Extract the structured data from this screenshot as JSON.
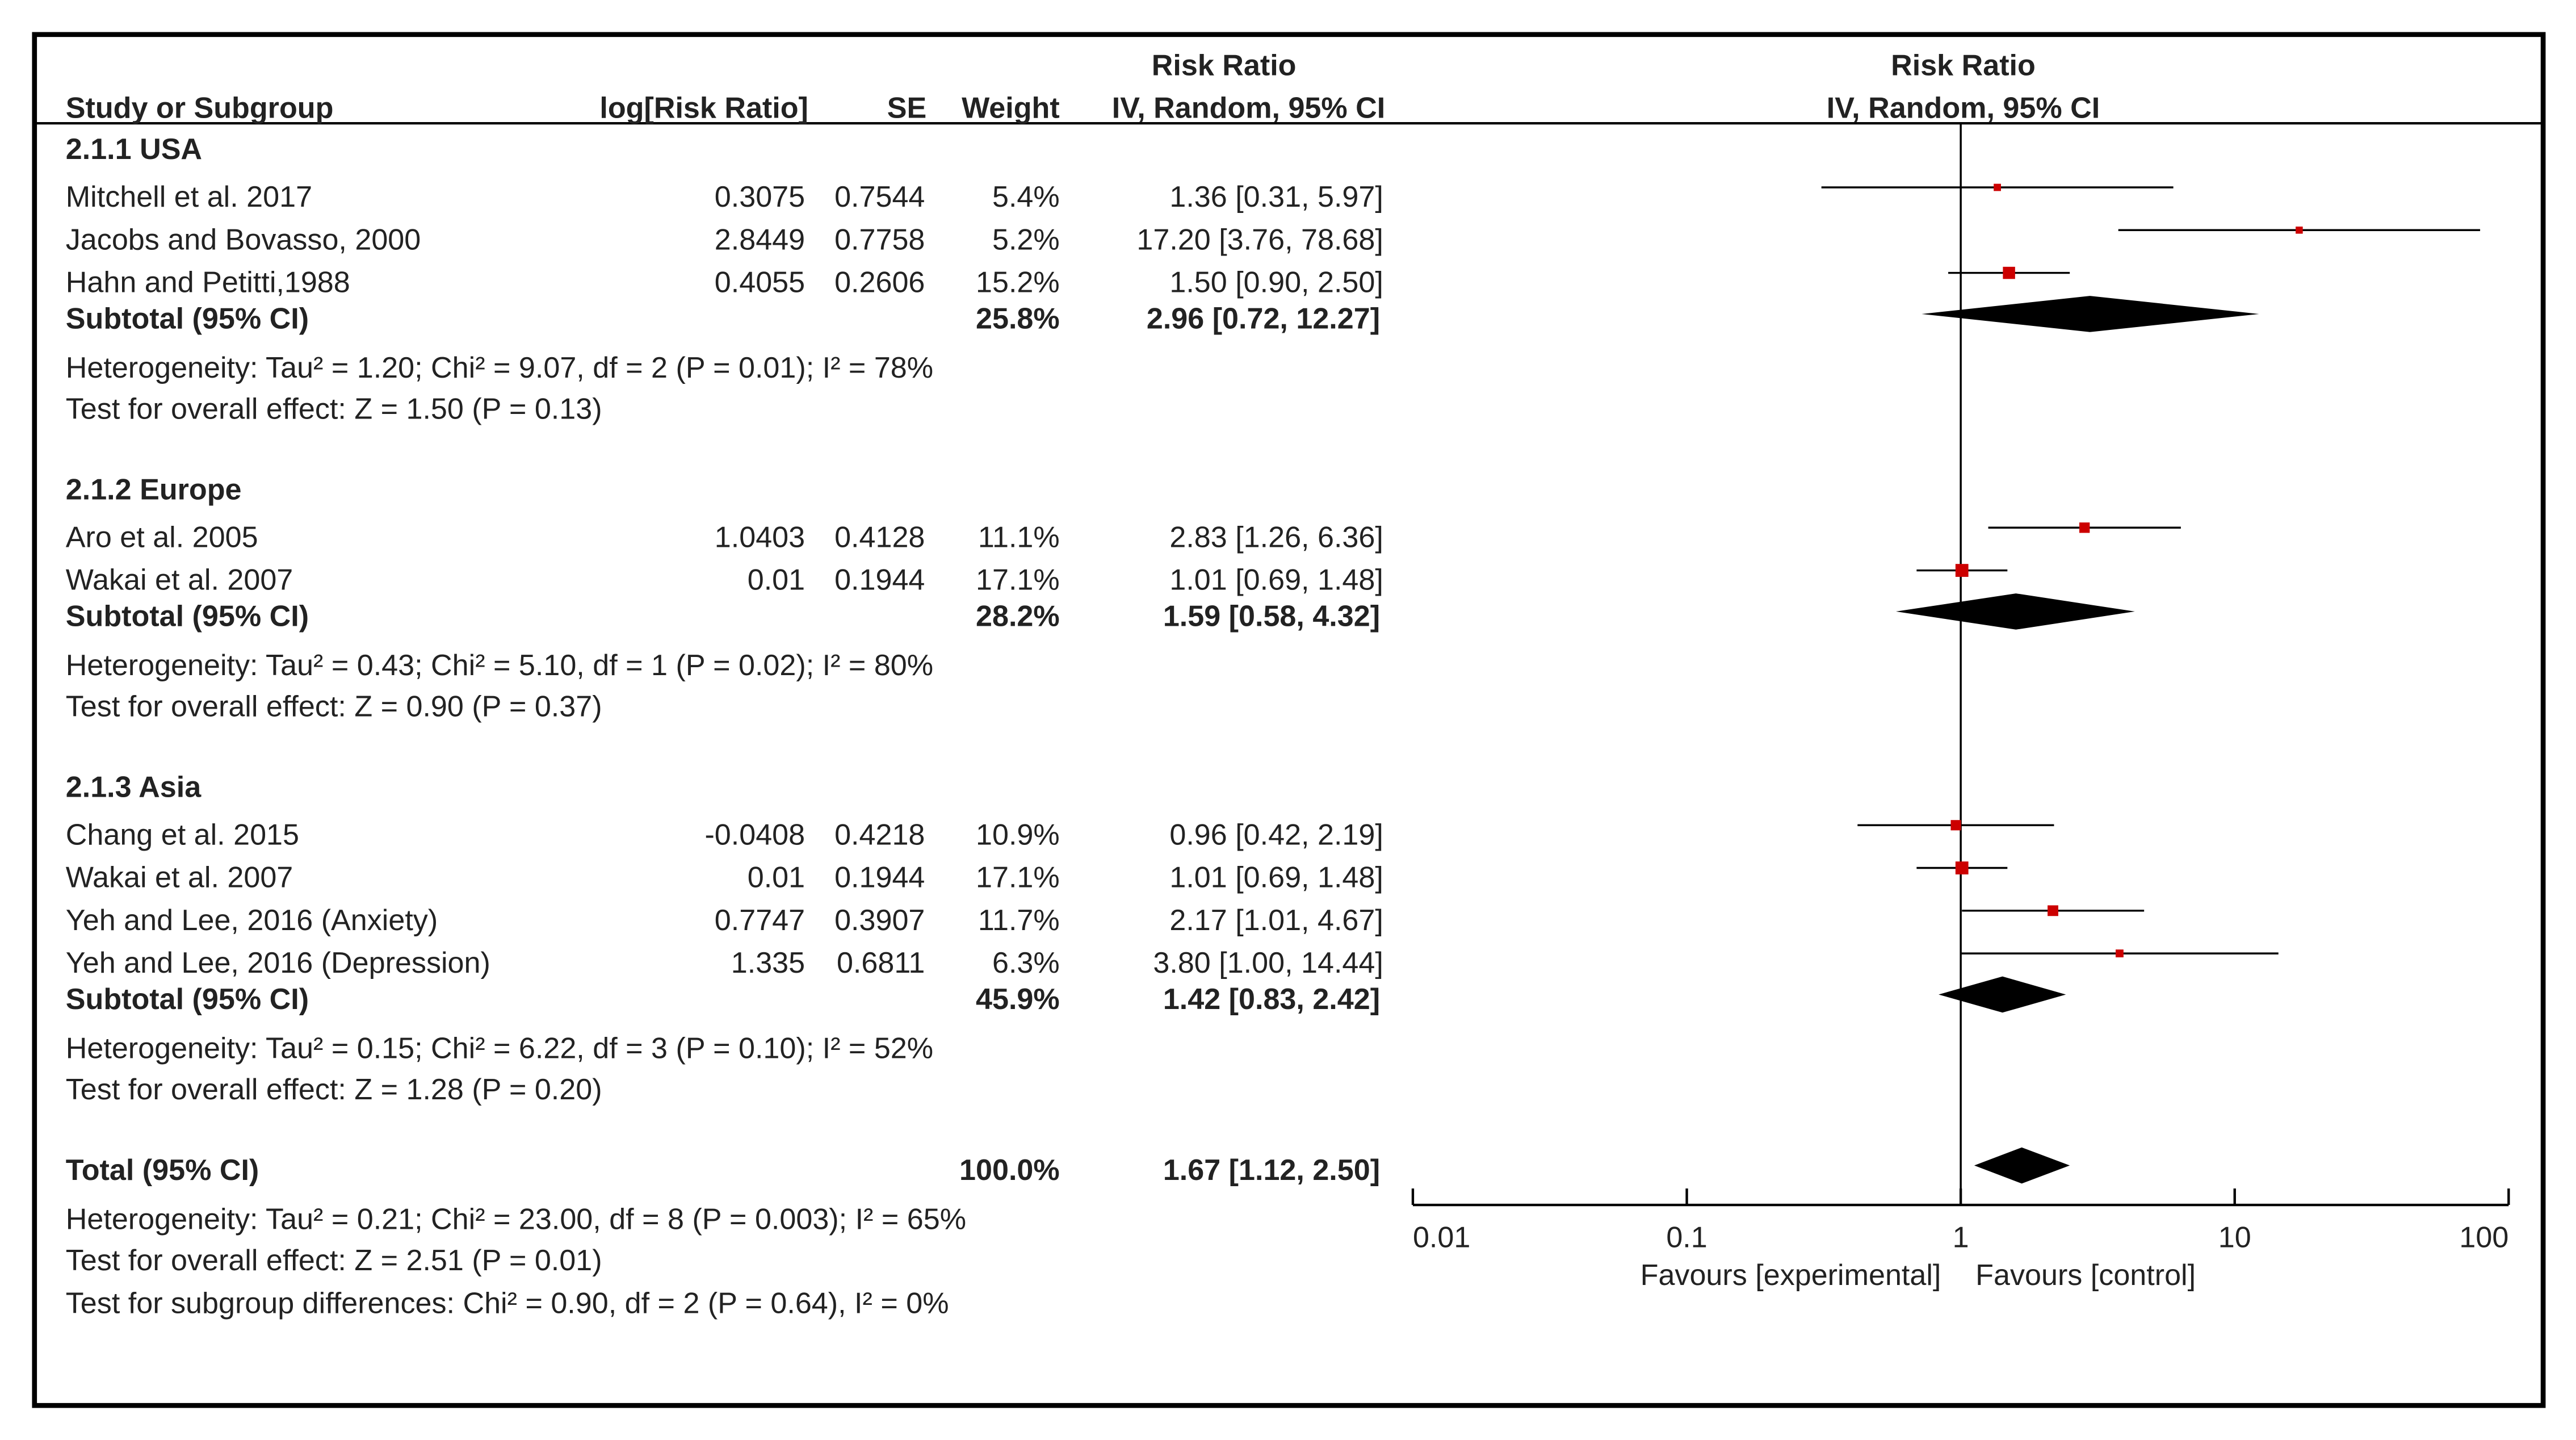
{
  "chart_data": {
    "type": "forest",
    "columns": [
      "Study or Subgroup",
      "log[Risk Ratio]",
      "SE",
      "Weight",
      "IV, Random, 95% CI"
    ],
    "column_group": "Risk Ratio",
    "plot_header": [
      "Risk Ratio",
      "IV, Random, 95% CI"
    ],
    "groups": [
      {
        "name": "2.1.1 USA",
        "studies": [
          {
            "name": "Mitchell et al. 2017",
            "log_rr": 0.3075,
            "se": 0.7544,
            "weight": 5.4,
            "weight_label": "5.4%",
            "rr": 1.36,
            "ci_low": 0.31,
            "ci_high": 5.97,
            "ci_label": "1.36 [0.31, 5.97]"
          },
          {
            "name": "Jacobs and Bovasso, 2000",
            "log_rr": 2.8449,
            "se": 0.7758,
            "weight": 5.2,
            "weight_label": "5.2%",
            "rr": 17.2,
            "ci_low": 3.76,
            "ci_high": 78.68,
            "ci_label": "17.20 [3.76, 78.68]"
          },
          {
            "name": "Hahn and Petitti,1988",
            "log_rr": 0.4055,
            "se": 0.2606,
            "weight": 15.2,
            "weight_label": "15.2%",
            "rr": 1.5,
            "ci_low": 0.9,
            "ci_high": 2.5,
            "ci_label": "1.50 [0.90, 2.50]"
          }
        ],
        "subtotal": {
          "name": "Subtotal (95% CI)",
          "weight": 25.8,
          "weight_label": "25.8%",
          "rr": 2.96,
          "ci_low": 0.72,
          "ci_high": 12.27,
          "ci_label": "2.96 [0.72, 12.27]"
        },
        "heterogeneity": "Heterogeneity: Tau² = 1.20; Chi² = 9.07, df = 2 (P = 0.01); I² = 78%",
        "overall": "Test for overall effect: Z = 1.50 (P = 0.13)"
      },
      {
        "name": "2.1.2 Europe",
        "studies": [
          {
            "name": "Aro et al. 2005",
            "log_rr": 1.0403,
            "se": 0.4128,
            "weight": 11.1,
            "weight_label": "11.1%",
            "rr": 2.83,
            "ci_low": 1.26,
            "ci_high": 6.36,
            "ci_label": "2.83 [1.26, 6.36]"
          },
          {
            "name": "Wakai et al. 2007",
            "log_rr": 0.01,
            "se": 0.1944,
            "weight": 17.1,
            "weight_label": "17.1%",
            "rr": 1.01,
            "ci_low": 0.69,
            "ci_high": 1.48,
            "ci_label": "1.01 [0.69, 1.48]"
          }
        ],
        "subtotal": {
          "name": "Subtotal (95% CI)",
          "weight": 28.2,
          "weight_label": "28.2%",
          "rr": 1.59,
          "ci_low": 0.58,
          "ci_high": 4.32,
          "ci_label": "1.59 [0.58, 4.32]"
        },
        "heterogeneity": "Heterogeneity: Tau² = 0.43; Chi² = 5.10, df = 1 (P = 0.02); I² = 80%",
        "overall": "Test for overall effect: Z = 0.90 (P = 0.37)"
      },
      {
        "name": "2.1.3 Asia",
        "studies": [
          {
            "name": "Chang et al. 2015",
            "log_rr": -0.0408,
            "se": 0.4218,
            "weight": 10.9,
            "weight_label": "10.9%",
            "rr": 0.96,
            "ci_low": 0.42,
            "ci_high": 2.19,
            "ci_label": "0.96 [0.42, 2.19]"
          },
          {
            "name": "Wakai et al. 2007",
            "log_rr": 0.01,
            "se": 0.1944,
            "weight": 17.1,
            "weight_label": "17.1%",
            "rr": 1.01,
            "ci_low": 0.69,
            "ci_high": 1.48,
            "ci_label": "1.01 [0.69, 1.48]"
          },
          {
            "name": "Yeh and Lee, 2016 (Anxiety)",
            "log_rr": 0.7747,
            "se": 0.3907,
            "weight": 11.7,
            "weight_label": "11.7%",
            "rr": 2.17,
            "ci_low": 1.01,
            "ci_high": 4.67,
            "ci_label": "2.17 [1.01, 4.67]"
          },
          {
            "name": "Yeh and Lee, 2016 (Depression)",
            "log_rr": 1.335,
            "se": 0.6811,
            "weight": 6.3,
            "weight_label": "6.3%",
            "rr": 3.8,
            "ci_low": 1.0,
            "ci_high": 14.44,
            "ci_label": "3.80 [1.00, 14.44]"
          }
        ],
        "subtotal": {
          "name": "Subtotal (95% CI)",
          "weight": 45.9,
          "weight_label": "45.9%",
          "rr": 1.42,
          "ci_low": 0.83,
          "ci_high": 2.42,
          "ci_label": "1.42 [0.83, 2.42]"
        },
        "heterogeneity": "Heterogeneity: Tau² = 0.15; Chi² = 6.22, df = 3 (P = 0.10); I² = 52%",
        "overall": "Test for overall effect: Z = 1.28 (P = 0.20)"
      }
    ],
    "total": {
      "name": "Total (95% CI)",
      "weight": 100,
      "weight_label": "100.0%",
      "rr": 1.67,
      "ci_low": 1.12,
      "ci_high": 2.5,
      "ci_label": "1.67 [1.12, 2.50]",
      "heterogeneity": "Heterogeneity: Tau² = 0.21; Chi² = 23.00, df = 8 (P = 0.003); I² = 65%",
      "overall": "Test for overall effect: Z = 2.51 (P = 0.01)",
      "subgroup_test": "Test for subgroup differences: Chi² = 0.90, df = 2 (P = 0.64), I² = 0%"
    },
    "xlim": [
      0.01,
      100
    ],
    "xticks": [
      0.01,
      0.1,
      1,
      10,
      100
    ],
    "log_scale": true,
    "x_labels": [
      "Favours [experimental]",
      "Favours [control]"
    ],
    "marker_color": "#cc0000",
    "summary_color": "#000000"
  }
}
